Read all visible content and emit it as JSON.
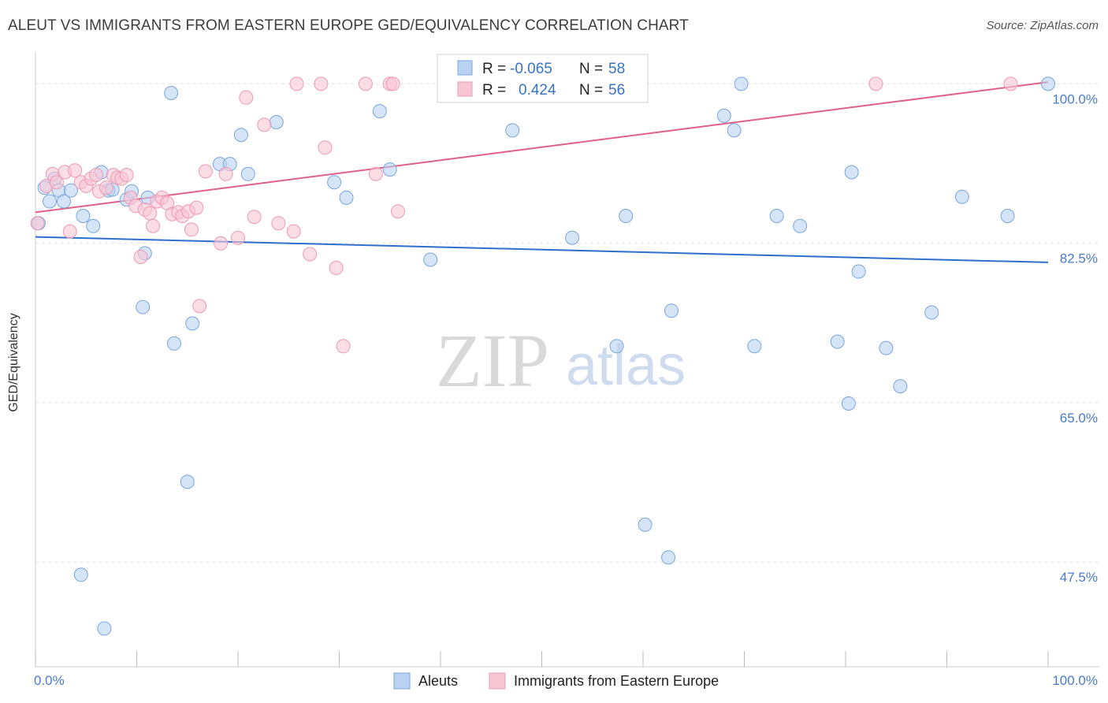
{
  "header": {
    "title": "ALEUT VS IMMIGRANTS FROM EASTERN EUROPE GED/EQUIVALENCY CORRELATION CHART",
    "source": "Source: ZipAtlas.com"
  },
  "watermark": {
    "zip": "ZIP",
    "atlas": "atlas"
  },
  "colors": {
    "blue_fill": "#b9d2f2",
    "blue_stroke": "#7aa6dd",
    "blue_line": "#2f6fcc",
    "pink_fill": "#f8c7d6",
    "pink_stroke": "#ec9ab4",
    "pink_line": "#e0608a",
    "axis_text": "#4a7bc8",
    "grid": "#e4e4e4"
  },
  "stats_box": {
    "rows": [
      {
        "r_label": "R =",
        "r_value": "-0.065",
        "n_label": "N =",
        "n_value": "58"
      },
      {
        "r_label": "R =",
        "r_value": "0.424",
        "n_label": "N =",
        "n_value": "56"
      }
    ]
  },
  "chart_data": {
    "type": "scatter",
    "title": "ALEUT VS IMMIGRANTS FROM EASTERN EUROPE GED/EQUIVALENCY CORRELATION CHART",
    "xlabel": "",
    "ylabel": "GED/Equivalency",
    "xlim": [
      0,
      100
    ],
    "ylim": [
      36,
      103.5
    ],
    "x_tick_labels": [
      "0.0%",
      "100.0%"
    ],
    "y_ticks": [
      47.5,
      65.0,
      82.5,
      100.0
    ],
    "y_tick_labels": [
      "47.5%",
      "65.0%",
      "82.5%",
      "100.0%"
    ],
    "grid": true,
    "legend_position": "bottom-center",
    "series": [
      {
        "name": "Aleuts",
        "color": "#b9d2f2",
        "trend": {
          "x": [
            0,
            100
          ],
          "y": [
            83.2,
            80.4
          ]
        },
        "points": [
          [
            0.3,
            84.7
          ],
          [
            0.9,
            88.6
          ],
          [
            1.4,
            87.1
          ],
          [
            1.9,
            89.6
          ],
          [
            2.3,
            88.3
          ],
          [
            2.8,
            87.1
          ],
          [
            3.5,
            88.3
          ],
          [
            4.7,
            85.5
          ],
          [
            5.7,
            84.4
          ],
          [
            6.5,
            90.3
          ],
          [
            7.2,
            88.3
          ],
          [
            7.6,
            88.4
          ],
          [
            9.0,
            87.3
          ],
          [
            9.5,
            88.2
          ],
          [
            10.6,
            75.5
          ],
          [
            10.8,
            81.4
          ],
          [
            11.1,
            87.5
          ],
          [
            13.4,
            99.0
          ],
          [
            13.7,
            71.5
          ],
          [
            15.0,
            56.3
          ],
          [
            15.5,
            73.7
          ],
          [
            18.2,
            91.2
          ],
          [
            19.2,
            91.2
          ],
          [
            20.3,
            94.4
          ],
          [
            21.0,
            90.1
          ],
          [
            23.8,
            95.8
          ],
          [
            29.5,
            89.2
          ],
          [
            30.7,
            87.5
          ],
          [
            34.0,
            97.0
          ],
          [
            35.0,
            90.6
          ],
          [
            39.0,
            80.7
          ],
          [
            47.1,
            94.9
          ],
          [
            52.3,
            100.0
          ],
          [
            53.0,
            83.1
          ],
          [
            55.5,
            100.0
          ],
          [
            57.4,
            71.2
          ],
          [
            58.3,
            85.5
          ],
          [
            60.2,
            51.6
          ],
          [
            62.5,
            48.0
          ],
          [
            62.8,
            75.1
          ],
          [
            68.0,
            96.5
          ],
          [
            69.0,
            94.9
          ],
          [
            69.7,
            100.0
          ],
          [
            71.0,
            71.2
          ],
          [
            73.2,
            85.5
          ],
          [
            75.5,
            84.4
          ],
          [
            79.2,
            71.7
          ],
          [
            80.3,
            64.9
          ],
          [
            80.6,
            90.3
          ],
          [
            81.3,
            79.4
          ],
          [
            84.0,
            71.0
          ],
          [
            85.4,
            66.8
          ],
          [
            88.5,
            74.9
          ],
          [
            91.5,
            87.6
          ],
          [
            96.0,
            85.5
          ],
          [
            100.0,
            100.0
          ],
          [
            4.5,
            46.1
          ],
          [
            6.8,
            40.2
          ]
        ]
      },
      {
        "name": "Immigrants from Eastern Europe",
        "color": "#f8c7d6",
        "trend": {
          "x": [
            0,
            100
          ],
          "y": [
            85.9,
            100.2
          ]
        },
        "points": [
          [
            0.2,
            84.7
          ],
          [
            1.1,
            88.8
          ],
          [
            1.7,
            90.1
          ],
          [
            2.1,
            89.2
          ],
          [
            2.9,
            90.3
          ],
          [
            3.4,
            83.8
          ],
          [
            3.9,
            90.5
          ],
          [
            4.5,
            89.2
          ],
          [
            5.0,
            88.8
          ],
          [
            5.5,
            89.6
          ],
          [
            6.0,
            90.0
          ],
          [
            6.3,
            88.2
          ],
          [
            7.0,
            88.6
          ],
          [
            7.7,
            90.0
          ],
          [
            8.1,
            89.7
          ],
          [
            8.5,
            89.6
          ],
          [
            9.0,
            90.0
          ],
          [
            9.4,
            87.5
          ],
          [
            9.9,
            86.6
          ],
          [
            10.4,
            81.0
          ],
          [
            10.8,
            86.2
          ],
          [
            11.3,
            85.8
          ],
          [
            11.6,
            84.4
          ],
          [
            12.0,
            87.1
          ],
          [
            12.5,
            87.5
          ],
          [
            13.0,
            86.9
          ],
          [
            13.5,
            85.7
          ],
          [
            14.1,
            85.9
          ],
          [
            14.5,
            85.5
          ],
          [
            15.1,
            86.0
          ],
          [
            15.4,
            84.0
          ],
          [
            15.9,
            86.4
          ],
          [
            16.2,
            75.6
          ],
          [
            16.8,
            90.4
          ],
          [
            18.3,
            82.5
          ],
          [
            18.8,
            90.1
          ],
          [
            20.0,
            83.1
          ],
          [
            20.8,
            98.5
          ],
          [
            21.6,
            85.4
          ],
          [
            22.6,
            95.5
          ],
          [
            24.0,
            84.7
          ],
          [
            25.5,
            83.8
          ],
          [
            25.8,
            100.0
          ],
          [
            27.1,
            81.3
          ],
          [
            28.2,
            100.0
          ],
          [
            28.6,
            93.0
          ],
          [
            29.7,
            79.8
          ],
          [
            30.4,
            71.2
          ],
          [
            32.6,
            100.0
          ],
          [
            33.6,
            90.1
          ],
          [
            35.0,
            100.0
          ],
          [
            35.3,
            100.0
          ],
          [
            35.8,
            86.0
          ],
          [
            47.0,
            100.0
          ],
          [
            83.0,
            100.0
          ],
          [
            96.3,
            100.0
          ]
        ]
      }
    ]
  },
  "legend": {
    "items": [
      "Aleuts",
      "Immigrants from Eastern Europe"
    ]
  }
}
